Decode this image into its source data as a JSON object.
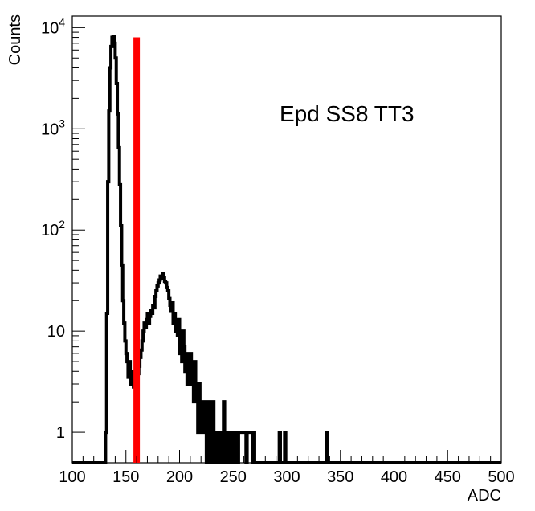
{
  "chart_data": {
    "type": "histogram",
    "annotation": "Epd SS8 TT3",
    "xlabel": "ADC",
    "ylabel": "Counts",
    "xlim": [
      100,
      500
    ],
    "ylim": [
      0.5,
      13000
    ],
    "y_scale": "log",
    "x_ticks": [
      "100",
      "150",
      "200",
      "250",
      "300",
      "350",
      "400",
      "450",
      "500"
    ],
    "y_ticks": [
      {
        "value": 1,
        "base": "1",
        "exp": ""
      },
      {
        "value": 10,
        "base": "10",
        "exp": ""
      },
      {
        "value": 100,
        "base": "10",
        "exp": "2"
      },
      {
        "value": 1000,
        "base": "10",
        "exp": "3"
      },
      {
        "value": 10000,
        "base": "10",
        "exp": "4"
      }
    ],
    "threshold_line": {
      "x": 160,
      "y_top": 8000,
      "color": "#ff0000"
    },
    "series": [
      {
        "color": "#000000",
        "bins": [
          [
            130,
            0.5
          ],
          [
            131,
            1
          ],
          [
            132,
            15
          ],
          [
            133,
            300
          ],
          [
            134,
            1500
          ],
          [
            135,
            4000
          ],
          [
            136,
            6500
          ],
          [
            137,
            8000
          ],
          [
            138,
            8200
          ],
          [
            139,
            7000
          ],
          [
            140,
            5000
          ],
          [
            141,
            2800
          ],
          [
            142,
            1400
          ],
          [
            143,
            650
          ],
          [
            144,
            280
          ],
          [
            145,
            110
          ],
          [
            146,
            45
          ],
          [
            147,
            20
          ],
          [
            148,
            12
          ],
          [
            149,
            8
          ],
          [
            150,
            6
          ],
          [
            151,
            5
          ],
          [
            152,
            3.5
          ],
          [
            153,
            5
          ],
          [
            154,
            3
          ],
          [
            155,
            4
          ],
          [
            156,
            3
          ],
          [
            157,
            2.8
          ],
          [
            158,
            3.3
          ],
          [
            159,
            2.5
          ],
          [
            160,
            3.2
          ],
          [
            161,
            3.8
          ],
          [
            162,
            4.5
          ],
          [
            163,
            5.5
          ],
          [
            164,
            6.5
          ],
          [
            165,
            8
          ],
          [
            166,
            10
          ],
          [
            167,
            12
          ],
          [
            168,
            11
          ],
          [
            169,
            13
          ],
          [
            170,
            15
          ],
          [
            171,
            12
          ],
          [
            172,
            14
          ],
          [
            173,
            16
          ],
          [
            174,
            15
          ],
          [
            175,
            18
          ],
          [
            176,
            17
          ],
          [
            177,
            22
          ],
          [
            178,
            25
          ],
          [
            179,
            28
          ],
          [
            180,
            30
          ],
          [
            181,
            32
          ],
          [
            182,
            35
          ],
          [
            183,
            33
          ],
          [
            184,
            37
          ],
          [
            185,
            34
          ],
          [
            186,
            31
          ],
          [
            187,
            30
          ],
          [
            188,
            27
          ],
          [
            189,
            25
          ],
          [
            190,
            21
          ],
          [
            191,
            18
          ],
          [
            192,
            16
          ],
          [
            193,
            19
          ],
          [
            194,
            12
          ],
          [
            195,
            15
          ],
          [
            196,
            10
          ],
          [
            197,
            12
          ],
          [
            198,
            9
          ],
          [
            199,
            13
          ],
          [
            200,
            6
          ],
          [
            201,
            9
          ],
          [
            202,
            5
          ],
          [
            203,
            10
          ],
          [
            204,
            7
          ],
          [
            205,
            4
          ],
          [
            206,
            6
          ],
          [
            207,
            3
          ],
          [
            208,
            5
          ],
          [
            209,
            4
          ],
          [
            210,
            6
          ],
          [
            211,
            3
          ],
          [
            212,
            4
          ],
          [
            213,
            2
          ],
          [
            214,
            5
          ],
          [
            215,
            2
          ],
          [
            216,
            3
          ],
          [
            217,
            1
          ],
          [
            218,
            3
          ],
          [
            219,
            2
          ],
          [
            220,
            1
          ],
          [
            221,
            2
          ],
          [
            222,
            1
          ],
          [
            223,
            2
          ],
          [
            224,
            1
          ],
          [
            225,
            0.5
          ],
          [
            226,
            1
          ],
          [
            227,
            2
          ],
          [
            228,
            0.5
          ],
          [
            229,
            1
          ],
          [
            230,
            0.5
          ],
          [
            231,
            2
          ],
          [
            232,
            1
          ],
          [
            233,
            0.5
          ],
          [
            234,
            1
          ],
          [
            235,
            0.5
          ],
          [
            236,
            1
          ],
          [
            237,
            1
          ],
          [
            238,
            0.5
          ],
          [
            239,
            1
          ],
          [
            240,
            0.5
          ],
          [
            241,
            2
          ],
          [
            242,
            1
          ],
          [
            243,
            0.5
          ],
          [
            244,
            1
          ],
          [
            245,
            1
          ],
          [
            246,
            0.5
          ],
          [
            247,
            1
          ],
          [
            248,
            1
          ],
          [
            249,
            1
          ],
          [
            250,
            0.5
          ],
          [
            251,
            1
          ],
          [
            252,
            1
          ],
          [
            253,
            1
          ],
          [
            254,
            0.5
          ],
          [
            255,
            1
          ],
          [
            256,
            1
          ],
          [
            257,
            1
          ],
          [
            258,
            1
          ],
          [
            259,
            1
          ],
          [
            260,
            1
          ],
          [
            261,
            1
          ],
          [
            262,
            0.5
          ],
          [
            263,
            1
          ],
          [
            264,
            1
          ],
          [
            265,
            1
          ],
          [
            266,
            1
          ],
          [
            267,
            1
          ],
          [
            268,
            0.5
          ],
          [
            269,
            1
          ],
          [
            270,
            0.5
          ],
          [
            293,
            1
          ],
          [
            294,
            0.5
          ],
          [
            298,
            1
          ],
          [
            299,
            0.5
          ],
          [
            337,
            1
          ],
          [
            338,
            0.5
          ]
        ]
      }
    ]
  }
}
